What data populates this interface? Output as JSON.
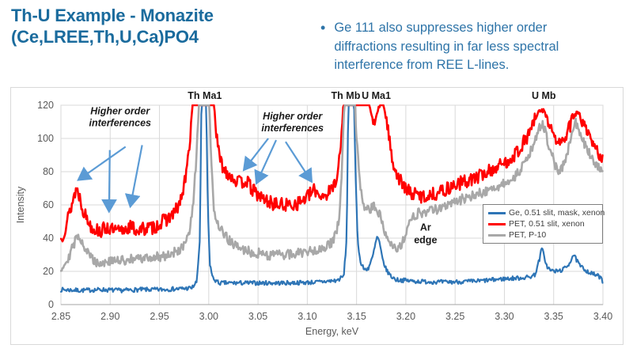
{
  "slide": {
    "title_line1": "Th-U Example - Monazite",
    "title_line2": "(Ce,LREE,Th,U,Ca)PO4",
    "bullet_marker": "•",
    "bullet_text": "Ge 111 also suppresses higher order diffractions resulting in far less spectral interference from REE L-lines.",
    "title_color": "#1A6B9D",
    "bullet_color": "#2E74A8"
  },
  "chart_data": {
    "type": "line",
    "title": "",
    "xlabel": "Energy, keV",
    "ylabel": "Intensity",
    "xlim": [
      2.85,
      3.4
    ],
    "ylim": [
      0,
      120
    ],
    "x_ticks": [
      2.85,
      2.9,
      2.95,
      3.0,
      3.05,
      3.1,
      3.15,
      3.2,
      3.25,
      3.3,
      3.35,
      3.4
    ],
    "y_ticks": [
      0,
      20,
      40,
      60,
      80,
      100,
      120
    ],
    "grid": true,
    "grid_color": "#D9D9D9",
    "axis_text_color": "#595959",
    "legend_position": "right-middle",
    "series": [
      {
        "name": "Ge, 0.51 slit, mask, xenon",
        "color": "#2E75B6",
        "noise": 1.3,
        "seed": 7,
        "width": 2.2,
        "keypoints": [
          [
            2.85,
            9
          ],
          [
            2.87,
            8.5
          ],
          [
            2.89,
            9
          ],
          [
            2.91,
            8.5
          ],
          [
            2.93,
            9
          ],
          [
            2.95,
            9
          ],
          [
            2.97,
            9.5
          ],
          [
            2.983,
            10
          ],
          [
            2.988,
            14
          ],
          [
            2.991,
            40
          ],
          [
            2.9925,
            120
          ],
          [
            2.9975,
            120
          ],
          [
            2.999,
            60
          ],
          [
            3.001,
            25
          ],
          [
            3.004,
            16
          ],
          [
            3.01,
            13
          ],
          [
            3.03,
            13
          ],
          [
            3.05,
            13
          ],
          [
            3.08,
            13
          ],
          [
            3.11,
            13.5
          ],
          [
            3.13,
            14.5
          ],
          [
            3.137,
            17
          ],
          [
            3.14,
            40
          ],
          [
            3.1415,
            120
          ],
          [
            3.1475,
            120
          ],
          [
            3.149,
            80
          ],
          [
            3.151,
            40
          ],
          [
            3.154,
            25
          ],
          [
            3.158,
            21
          ],
          [
            3.162,
            22
          ],
          [
            3.166,
            28
          ],
          [
            3.169,
            36
          ],
          [
            3.171,
            41
          ],
          [
            3.173,
            38
          ],
          [
            3.176,
            28
          ],
          [
            3.18,
            21
          ],
          [
            3.185,
            17
          ],
          [
            3.19,
            15
          ],
          [
            3.21,
            14
          ],
          [
            3.24,
            13.5
          ],
          [
            3.27,
            14
          ],
          [
            3.3,
            15.5
          ],
          [
            3.315,
            16
          ],
          [
            3.325,
            16.5
          ],
          [
            3.331,
            18
          ],
          [
            3.3355,
            27
          ],
          [
            3.338,
            34
          ],
          [
            3.34,
            30
          ],
          [
            3.343,
            23
          ],
          [
            3.347,
            20.5
          ],
          [
            3.352,
            20
          ],
          [
            3.357,
            20.5
          ],
          [
            3.362,
            22
          ],
          [
            3.366,
            25
          ],
          [
            3.37,
            30
          ],
          [
            3.373,
            27
          ],
          [
            3.377,
            23
          ],
          [
            3.382,
            21
          ],
          [
            3.387,
            19
          ],
          [
            3.392,
            18
          ],
          [
            3.396,
            17
          ],
          [
            3.4,
            14
          ]
        ]
      },
      {
        "name": "PET, 0.51 slit, xenon",
        "color": "#FF0000",
        "noise": 4.2,
        "seed": 13,
        "width": 2.6,
        "keypoints": [
          [
            2.85,
            39
          ],
          [
            2.853,
            44
          ],
          [
            2.857,
            52
          ],
          [
            2.861,
            60
          ],
          [
            2.864,
            67
          ],
          [
            2.866,
            70
          ],
          [
            2.869,
            65
          ],
          [
            2.872,
            58
          ],
          [
            2.876,
            52
          ],
          [
            2.881,
            47
          ],
          [
            2.886,
            45
          ],
          [
            2.891,
            44
          ],
          [
            2.896,
            47
          ],
          [
            2.901,
            45
          ],
          [
            2.906,
            44
          ],
          [
            2.911,
            44
          ],
          [
            2.916,
            46
          ],
          [
            2.921,
            47
          ],
          [
            2.926,
            45
          ],
          [
            2.931,
            45
          ],
          [
            2.936,
            46
          ],
          [
            2.941,
            46
          ],
          [
            2.946,
            47
          ],
          [
            2.951,
            49
          ],
          [
            2.956,
            51
          ],
          [
            2.961,
            53
          ],
          [
            2.966,
            56
          ],
          [
            2.97,
            60
          ],
          [
            2.974,
            68
          ],
          [
            2.978,
            82
          ],
          [
            2.981,
            100
          ],
          [
            2.9835,
            120
          ],
          [
            3.0055,
            120
          ],
          [
            3.008,
            100
          ],
          [
            3.011,
            88
          ],
          [
            3.015,
            82
          ],
          [
            3.02,
            79
          ],
          [
            3.025,
            76
          ],
          [
            3.032,
            73
          ],
          [
            3.038,
            75
          ],
          [
            3.043,
            70
          ],
          [
            3.048,
            67
          ],
          [
            3.054,
            64
          ],
          [
            3.06,
            62
          ],
          [
            3.07,
            60
          ],
          [
            3.08,
            60
          ],
          [
            3.09,
            61
          ],
          [
            3.096,
            63
          ],
          [
            3.102,
            66
          ],
          [
            3.108,
            69
          ],
          [
            3.113,
            66
          ],
          [
            3.118,
            66
          ],
          [
            3.123,
            68
          ],
          [
            3.127,
            72
          ],
          [
            3.131,
            80
          ],
          [
            3.134,
            95
          ],
          [
            3.1365,
            120
          ],
          [
            3.1625,
            120
          ],
          [
            3.166,
            112
          ],
          [
            3.169,
            110
          ],
          [
            3.1715,
            117
          ],
          [
            3.174,
            120
          ],
          [
            3.1775,
            120
          ],
          [
            3.18,
            112
          ],
          [
            3.183,
            100
          ],
          [
            3.187,
            86
          ],
          [
            3.191,
            78
          ],
          [
            3.196,
            73
          ],
          [
            3.2,
            69
          ],
          [
            3.21,
            66
          ],
          [
            3.22,
            65
          ],
          [
            3.23,
            67
          ],
          [
            3.24,
            69
          ],
          [
            3.25,
            72
          ],
          [
            3.26,
            74
          ],
          [
            3.27,
            76
          ],
          [
            3.28,
            79
          ],
          [
            3.29,
            82
          ],
          [
            3.3,
            85
          ],
          [
            3.308,
            89
          ],
          [
            3.316,
            94
          ],
          [
            3.324,
            102
          ],
          [
            3.33,
            110
          ],
          [
            3.335,
            116
          ],
          [
            3.34,
            117
          ],
          [
            3.345,
            110
          ],
          [
            3.35,
            101
          ],
          [
            3.355,
            97
          ],
          [
            3.359,
            98
          ],
          [
            3.363,
            102
          ],
          [
            3.367,
            108
          ],
          [
            3.371,
            114
          ],
          [
            3.375,
            116
          ],
          [
            3.379,
            110
          ],
          [
            3.384,
            103
          ],
          [
            3.388,
            98
          ],
          [
            3.393,
            93
          ],
          [
            3.397,
            90
          ],
          [
            3.4,
            88
          ]
        ]
      },
      {
        "name": "PET, P-10",
        "color": "#A8A8A8",
        "noise": 3.0,
        "seed": 29,
        "width": 2.6,
        "keypoints": [
          [
            2.85,
            22
          ],
          [
            2.853,
            24
          ],
          [
            2.857,
            28
          ],
          [
            2.861,
            33
          ],
          [
            2.865,
            39
          ],
          [
            2.868,
            42
          ],
          [
            2.871,
            39
          ],
          [
            2.875,
            33
          ],
          [
            2.88,
            29
          ],
          [
            2.885,
            26
          ],
          [
            2.89,
            25
          ],
          [
            2.9,
            26
          ],
          [
            2.91,
            26.5
          ],
          [
            2.92,
            27
          ],
          [
            2.93,
            27.5
          ],
          [
            2.94,
            28
          ],
          [
            2.95,
            29
          ],
          [
            2.96,
            30
          ],
          [
            2.968,
            32
          ],
          [
            2.975,
            35
          ],
          [
            2.98,
            42
          ],
          [
            2.984,
            58
          ],
          [
            2.987,
            85
          ],
          [
            2.99,
            120
          ],
          [
            3.0005,
            120
          ],
          [
            3.0025,
            85
          ],
          [
            3.005,
            60
          ],
          [
            3.008,
            50
          ],
          [
            3.012,
            45
          ],
          [
            3.017,
            41
          ],
          [
            3.022,
            38
          ],
          [
            3.03,
            34
          ],
          [
            3.04,
            32
          ],
          [
            3.05,
            31
          ],
          [
            3.06,
            30
          ],
          [
            3.08,
            30
          ],
          [
            3.1,
            32
          ],
          [
            3.115,
            34
          ],
          [
            3.125,
            37
          ],
          [
            3.13,
            43
          ],
          [
            3.1335,
            60
          ],
          [
            3.136,
            95
          ],
          [
            3.1375,
            120
          ],
          [
            3.1485,
            120
          ],
          [
            3.15,
            100
          ],
          [
            3.153,
            75
          ],
          [
            3.156,
            62
          ],
          [
            3.159,
            56
          ],
          [
            3.163,
            57
          ],
          [
            3.167,
            59
          ],
          [
            3.171,
            57
          ],
          [
            3.175,
            52
          ],
          [
            3.179,
            44
          ],
          [
            3.183,
            39
          ],
          [
            3.188,
            35
          ],
          [
            3.192,
            34
          ],
          [
            3.196,
            36
          ],
          [
            3.2,
            42
          ],
          [
            3.204,
            49
          ],
          [
            3.208,
            53
          ],
          [
            3.213,
            55
          ],
          [
            3.22,
            56
          ],
          [
            3.23,
            57
          ],
          [
            3.24,
            60
          ],
          [
            3.25,
            62
          ],
          [
            3.26,
            64
          ],
          [
            3.27,
            66
          ],
          [
            3.28,
            68
          ],
          [
            3.29,
            70
          ],
          [
            3.3,
            73
          ],
          [
            3.31,
            77
          ],
          [
            3.32,
            84
          ],
          [
            3.328,
            94
          ],
          [
            3.334,
            104
          ],
          [
            3.338,
            109
          ],
          [
            3.342,
            103
          ],
          [
            3.347,
            92
          ],
          [
            3.352,
            83
          ],
          [
            3.356,
            79
          ],
          [
            3.36,
            84
          ],
          [
            3.364,
            92
          ],
          [
            3.368,
            101
          ],
          [
            3.372,
            110
          ],
          [
            3.376,
            105
          ],
          [
            3.381,
            97
          ],
          [
            3.386,
            91
          ],
          [
            3.39,
            86
          ],
          [
            3.395,
            83
          ],
          [
            3.4,
            80
          ]
        ]
      }
    ],
    "annotations": {
      "peak_labels": [
        {
          "text": "Th Ma1",
          "x": 2.996
        },
        {
          "text": "Th Mb",
          "x": 3.139
        },
        {
          "text": "U Ma1",
          "x": 3.17
        },
        {
          "text": "U Mb",
          "x": 3.34
        }
      ],
      "higher_order": [
        {
          "lines": [
            "Higher order",
            "interferences"
          ],
          "x": 2.91,
          "y": 113,
          "arrows": [
            [
              2.9156,
              95,
              2.8676,
              75
            ],
            [
              2.8996,
              93,
              2.8988,
              56
            ],
            [
              2.9324,
              96,
              2.9204,
              59
            ]
          ]
        },
        {
          "lines": [
            "Higher order",
            "interferences"
          ],
          "x": 3.085,
          "y": 110,
          "arrows": [
            [
              3.0604,
              100,
              3.0356,
              81
            ],
            [
              3.0684,
              99,
              3.0484,
              73
            ],
            [
              3.078,
              98,
              3.1044,
              74
            ]
          ]
        }
      ],
      "ar_edge": {
        "lines": [
          "Ar",
          "edge"
        ],
        "x": 3.22,
        "y": 43
      },
      "arrow_color": "#5B9BD5",
      "annotation_text_color": "#1A1A1A"
    }
  }
}
